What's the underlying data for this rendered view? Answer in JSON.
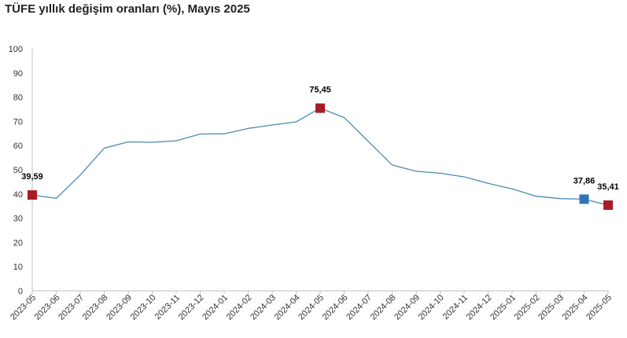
{
  "chart_data": {
    "type": "line",
    "title": "TÜFE yıllık değişim oranları (%), Mayıs 2025",
    "xlabel": "",
    "ylabel": "",
    "ylim": [
      0,
      100
    ],
    "yticks": [
      "0",
      "10",
      "20",
      "30",
      "40",
      "50",
      "60",
      "70",
      "80",
      "90",
      "100"
    ],
    "grid": false,
    "legend": "none",
    "categories": [
      "2023-05",
      "2023-06",
      "2023-07",
      "2023-08",
      "2023-09",
      "2023-10",
      "2023-11",
      "2023-12",
      "2024-01",
      "2024-02",
      "2024-03",
      "2024-04",
      "2024-05",
      "2024-06",
      "2024-07",
      "2024-08",
      "2024-09",
      "2024-10",
      "2024-11",
      "2024-12",
      "2025-01",
      "2025-02",
      "2025-03",
      "2025-04",
      "2025-05"
    ],
    "series": [
      {
        "values": [
          39.59,
          38.21,
          47.83,
          58.94,
          61.53,
          61.36,
          61.98,
          64.77,
          64.86,
          67.07,
          68.5,
          69.8,
          75.45,
          71.6,
          61.78,
          51.97,
          49.38,
          48.58,
          47.09,
          44.38,
          42.12,
          39.05,
          38.1,
          37.86,
          35.41
        ],
        "color": "#4a8ab5"
      }
    ],
    "markers": [
      {
        "index": 0,
        "label": "39,59",
        "color": "#a81c24"
      },
      {
        "index": 12,
        "label": "75,45",
        "color": "#a81c24"
      },
      {
        "index": 23,
        "label": "37,86",
        "color": "#2e75b6"
      },
      {
        "index": 24,
        "label": "35,41",
        "color": "#a81c24"
      }
    ]
  }
}
